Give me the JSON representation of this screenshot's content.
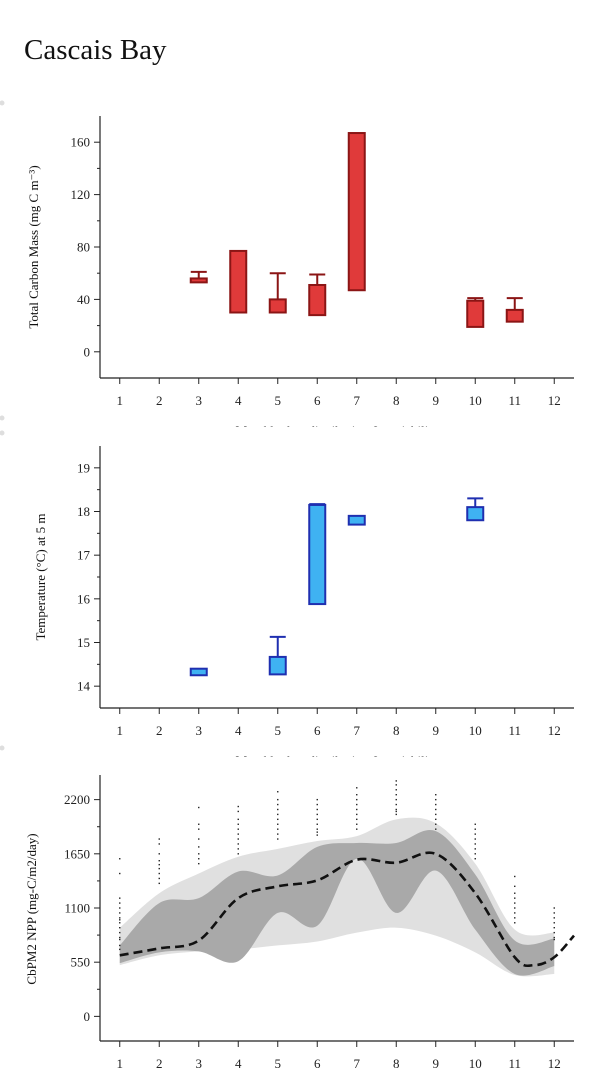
{
  "page": {
    "title": "Cascais Bay"
  },
  "chart_data": [
    {
      "type": "box",
      "ylabel": "Total Carbon Mass (mg C m⁻³)",
      "xlabel": "Monthly data distribution & variability",
      "xlim": [
        0.5,
        12.5
      ],
      "ylim": [
        -20,
        180
      ],
      "yticks": [
        0,
        40,
        80,
        120,
        160
      ],
      "xticks": [
        1,
        2,
        3,
        4,
        5,
        6,
        7,
        8,
        9,
        10,
        11,
        12
      ],
      "fill": "#e03a3a",
      "stroke": "#8b1515",
      "boxes": [
        {
          "month": 3,
          "low": 53,
          "high": 56,
          "whisker": 61
        },
        {
          "month": 4,
          "low": 30,
          "high": 77,
          "whisker": null
        },
        {
          "month": 5,
          "low": 30,
          "high": 40,
          "whisker": 60
        },
        {
          "month": 6,
          "low": 28,
          "high": 51,
          "whisker": 59
        },
        {
          "month": 7,
          "low": 47,
          "high": 167,
          "whisker": null
        },
        {
          "month": 10,
          "low": 19,
          "high": 39,
          "whisker": 41
        },
        {
          "month": 11,
          "low": 23,
          "high": 32,
          "whisker": 41
        }
      ]
    },
    {
      "type": "box",
      "ylabel": "Temperature (°C) at 5 m",
      "xlabel": "Monthly data distribution & variability",
      "xlim": [
        0.5,
        12.5
      ],
      "ylim": [
        13.5,
        19.5
      ],
      "yticks": [
        14,
        15,
        16,
        17,
        18,
        19
      ],
      "xticks": [
        1,
        2,
        3,
        4,
        5,
        6,
        7,
        8,
        9,
        10,
        11,
        12
      ],
      "fill": "#3fb2f2",
      "stroke": "#1f2fb0",
      "boxes": [
        {
          "month": 3,
          "low": 14.25,
          "high": 14.4,
          "whisker": null
        },
        {
          "month": 5,
          "low": 14.27,
          "high": 14.67,
          "whisker": 15.13
        },
        {
          "month": 6,
          "low": 15.88,
          "high": 18.15,
          "whisker": 18.17
        },
        {
          "month": 7,
          "low": 17.7,
          "high": 17.9,
          "whisker": null
        },
        {
          "month": 10,
          "low": 17.8,
          "high": 18.1,
          "whisker": 18.3
        }
      ]
    },
    {
      "type": "area",
      "ylabel": "CbPM2 NPP (mg-C/m2/day)",
      "xlim": [
        0.5,
        12.5
      ],
      "ylim": [
        -250,
        2450
      ],
      "yticks": [
        0,
        550,
        1100,
        1650,
        2200
      ],
      "xticks": [
        1,
        2,
        3,
        4,
        5,
        6,
        7,
        8,
        9,
        10,
        11,
        12
      ],
      "outer_band": {
        "color": "#e0e0e0",
        "x": [
          1,
          2,
          3,
          4,
          5,
          6,
          7,
          8,
          9,
          10,
          11,
          12
        ],
        "upper": [
          900,
          1250,
          1450,
          1620,
          1700,
          1780,
          1830,
          2000,
          1960,
          1550,
          880,
          850
        ],
        "lower": [
          520,
          620,
          660,
          680,
          720,
          760,
          850,
          900,
          820,
          650,
          420,
          430
        ]
      },
      "inner_band": {
        "color": "#a9a9a9",
        "x": [
          1,
          2,
          3,
          4,
          5,
          6,
          7,
          8,
          9,
          10,
          11,
          12
        ],
        "upper": [
          720,
          1150,
          1200,
          1470,
          1430,
          1720,
          1760,
          1760,
          1880,
          1440,
          770,
          790
        ],
        "lower": [
          540,
          650,
          660,
          560,
          1050,
          920,
          1600,
          1050,
          1480,
          880,
          430,
          510
        ]
      },
      "mean_line": {
        "color": "#111111",
        "x": [
          1,
          2,
          3,
          4,
          5,
          6,
          7,
          8,
          9,
          10,
          11,
          11.5,
          12,
          12.5
        ],
        "y": [
          620,
          690,
          770,
          1200,
          1320,
          1380,
          1590,
          1560,
          1650,
          1250,
          600,
          520,
          600,
          820
        ]
      },
      "points": {
        "color": "#222222",
        "months": [
          1,
          2,
          3,
          4,
          5,
          6,
          7,
          8,
          9,
          10,
          11,
          12
        ],
        "values": [
          [
            1600,
            1450,
            1200,
            1150,
            1100,
            1050,
            1000,
            980,
            950,
            900,
            850,
            800,
            780,
            720,
            680
          ],
          [
            1800,
            1750,
            1650,
            1580,
            1540,
            1500,
            1450,
            1400,
            1350
          ],
          [
            2120,
            1950,
            1900,
            1800,
            1720,
            1650,
            1600,
            1550
          ],
          [
            2130,
            2080,
            2000,
            1950,
            1900,
            1850,
            1800,
            1750,
            1700,
            1650
          ],
          [
            2280,
            2200,
            2150,
            2100,
            2050,
            2000,
            1950,
            1900,
            1850,
            1800
          ],
          [
            2200,
            2150,
            2100,
            2050,
            2000,
            1950,
            1900,
            1870,
            1840
          ],
          [
            2320,
            2250,
            2200,
            2150,
            2100,
            2050,
            2000,
            1950,
            1900
          ],
          [
            2390,
            2350,
            2300,
            2250,
            2200,
            2150,
            2100,
            2080,
            2050
          ],
          [
            2250,
            2200,
            2150,
            2100,
            2050,
            2000,
            1950,
            1900
          ],
          [
            1950,
            1900,
            1850,
            1800,
            1750,
            1700,
            1650,
            1600
          ],
          [
            1420,
            1320,
            1250,
            1200,
            1150,
            1100,
            1050,
            1000,
            950
          ],
          [
            1100,
            1050,
            1000,
            950,
            900,
            850,
            800,
            780
          ]
        ]
      }
    }
  ]
}
